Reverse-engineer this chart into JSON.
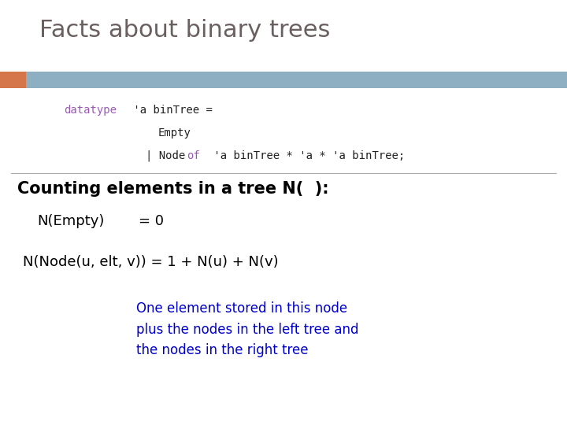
{
  "title": "Facts about binary trees",
  "title_color": "#6b6060",
  "title_fontsize": 22,
  "bg_color": "#ffffff",
  "header_bar_color": "#8eafc2",
  "header_accent_color": "#d4764a",
  "section_title": "Counting elements in a tree N(  ):",
  "section_title_fontsize": 15,
  "section_title_color": "#000000",
  "line1_left": "N(Empty)",
  "line1_right": "= 0",
  "line2": "N(Node(u, elt, v)) = 1 + N(u) + N(v)",
  "annotation": "One element stored in this node\nplus the nodes in the left tree and\nthe nodes in the right tree",
  "annotation_color": "#0000cc",
  "code_fontsize": 10,
  "body_fontsize": 13,
  "annotation_fontsize": 12
}
